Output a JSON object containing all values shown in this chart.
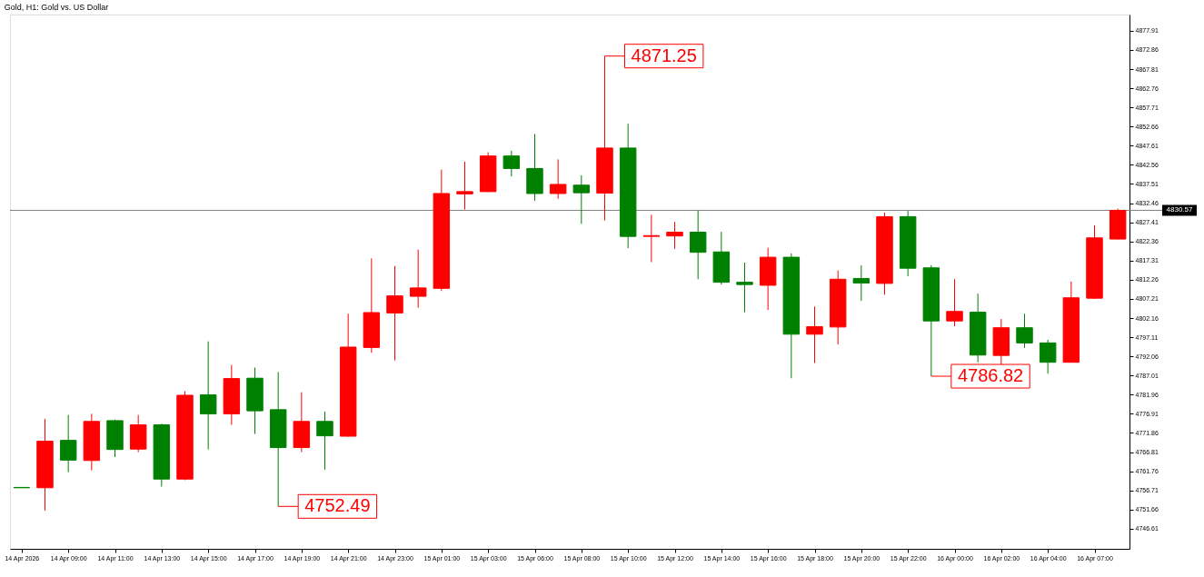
{
  "chart_data": {
    "type": "candlestick",
    "title": "Gold, H1: Gold vs. US Dollar",
    "categories": [
      "14 Apr 2026",
      null,
      "14 Apr 09:00",
      null,
      "14 Apr 11:00",
      null,
      "14 Apr 13:00",
      null,
      "14 Apr 15:00",
      null,
      "14 Apr 17:00",
      null,
      "14 Apr 19:00",
      null,
      "14 Apr 21:00",
      null,
      "14 Apr 23:00",
      null,
      "15 Apr 01:00",
      null,
      "15 Apr 03:00",
      null,
      "15 Apr 06:00",
      null,
      "15 Apr 08:00",
      null,
      "15 Apr 10:00",
      null,
      "15 Apr 12:00",
      null,
      "15 Apr 14:00",
      null,
      "15 Apr 16:00",
      null,
      "15 Apr 18:00",
      null,
      "15 Apr 20:00",
      null,
      "15 Apr 22:00",
      null,
      "16 Apr 00:00",
      null,
      "16 Apr 02:00",
      null,
      "16 Apr 04:00",
      null,
      "16 Apr 07:00",
      null
    ],
    "ohlc": [
      [
        4757.5,
        4757.5,
        4757.4,
        4757.4
      ],
      [
        4757.4,
        4775.6,
        4751.4,
        4769.7
      ],
      [
        4769.9,
        4776.6,
        4761.5,
        4764.7
      ],
      [
        4764.6,
        4776.9,
        4762.0,
        4774.9
      ],
      [
        4775.1,
        4775.4,
        4765.5,
        4767.5
      ],
      [
        4767.6,
        4776.6,
        4766.8,
        4774.0
      ],
      [
        4774.0,
        4774.3,
        4757.7,
        4759.7
      ],
      [
        4759.7,
        4782.9,
        4759.4,
        4781.8
      ],
      [
        4781.9,
        4796.0,
        4767.5,
        4776.9
      ],
      [
        4776.9,
        4789.8,
        4774.0,
        4786.2
      ],
      [
        4786.3,
        4789.1,
        4771.6,
        4777.7
      ],
      [
        4778.0,
        4787.9,
        4752.49,
        4768.0
      ],
      [
        4768.0,
        4782.6,
        4766.8,
        4774.9
      ],
      [
        4774.9,
        4777.5,
        4762.2,
        4771.1
      ],
      [
        4771.0,
        4803.3,
        4770.9,
        4794.5
      ],
      [
        4794.4,
        4817.9,
        4793.0,
        4803.6
      ],
      [
        4803.5,
        4815.9,
        4791.0,
        4808.0
      ],
      [
        4807.9,
        4820.2,
        4804.9,
        4810.1
      ],
      [
        4810.0,
        4841.3,
        4809.3,
        4835.0
      ],
      [
        4834.9,
        4843.4,
        4830.8,
        4835.5
      ],
      [
        4835.5,
        4845.9,
        4835.4,
        4844.9
      ],
      [
        4844.9,
        4846.3,
        4839.5,
        4841.6
      ],
      [
        4841.6,
        4850.7,
        4833.1,
        4835.0
      ],
      [
        4835.0,
        4844.0,
        4833.6,
        4837.4
      ],
      [
        4837.2,
        4839.8,
        4827.0,
        4835.2
      ],
      [
        4835.1,
        4871.25,
        4827.9,
        4847.0
      ],
      [
        4847.0,
        4853.4,
        4820.6,
        4823.7
      ],
      [
        4823.7,
        4829.4,
        4816.9,
        4823.9
      ],
      [
        4823.8,
        4827.5,
        4820.4,
        4824.8
      ],
      [
        4824.8,
        4830.5,
        4812.4,
        4819.5
      ],
      [
        4819.6,
        4824.9,
        4811.0,
        4811.6
      ],
      [
        4811.6,
        4816.8,
        4803.7,
        4811.0
      ],
      [
        4810.8,
        4820.7,
        4804.3,
        4818.2
      ],
      [
        4818.2,
        4819.2,
        4786.3,
        4797.9
      ],
      [
        4797.9,
        4805.2,
        4790.3,
        4799.9
      ],
      [
        4799.8,
        4814.7,
        4795.2,
        4812.4
      ],
      [
        4812.6,
        4816.1,
        4806.7,
        4811.4
      ],
      [
        4811.3,
        4830.0,
        4808.3,
        4828.9
      ],
      [
        4828.9,
        4830.4,
        4813.2,
        4815.3
      ],
      [
        4815.4,
        4816.1,
        4786.82,
        4801.4
      ],
      [
        4801.4,
        4812.4,
        4800.0,
        4803.9
      ],
      [
        4803.7,
        4808.6,
        4790.5,
        4792.4
      ],
      [
        4792.3,
        4801.9,
        4789.7,
        4799.6
      ],
      [
        4799.6,
        4803.3,
        4794.3,
        4795.6
      ],
      [
        4795.6,
        4796.4,
        4787.5,
        4790.5
      ],
      [
        4790.5,
        4811.8,
        4790.4,
        4807.5
      ],
      [
        4807.4,
        4826.6,
        4807.2,
        4823.3
      ],
      [
        4823.0,
        4831.0,
        4822.9,
        4830.57
      ]
    ],
    "colors": [
      "#008000",
      "#ff0000",
      "#008000",
      "#ff0000",
      "#008000",
      "#ff0000",
      "#008000",
      "#ff0000",
      "#008000",
      "#ff0000",
      "#008000",
      "#008000",
      "#ff0000",
      "#008000",
      "#ff0000",
      "#ff0000",
      "#ff0000",
      "#ff0000",
      "#ff0000",
      "#ff0000",
      "#ff0000",
      "#008000",
      "#008000",
      "#ff0000",
      "#008000",
      "#ff0000",
      "#008000",
      "#ff0000",
      "#ff0000",
      "#008000",
      "#008000",
      "#008000",
      "#ff0000",
      "#008000",
      "#ff0000",
      "#ff0000",
      "#008000",
      "#ff0000",
      "#008000",
      "#008000",
      "#ff0000",
      "#008000",
      "#ff0000",
      "#008000",
      "#008000",
      "#ff0000",
      "#ff0000",
      "#ff0000"
    ],
    "ylim": [
      4741.3,
      4882.2
    ],
    "yticks": [
      4746.61,
      4751.66,
      4756.71,
      4761.76,
      4766.81,
      4771.86,
      4776.91,
      4781.96,
      4787.01,
      4792.06,
      4797.11,
      4802.16,
      4807.21,
      4812.26,
      4817.31,
      4822.36,
      4827.41,
      4832.46,
      4837.51,
      4842.56,
      4847.61,
      4852.66,
      4857.71,
      4862.76,
      4867.81,
      4872.86,
      4877.91
    ],
    "ref_lines": [
      {
        "axis": "y",
        "value": 4830.57,
        "label": "4830.57",
        "color": "#808080"
      }
    ],
    "annotations": [
      "4871.25",
      "4752.49",
      "4786.82"
    ]
  }
}
